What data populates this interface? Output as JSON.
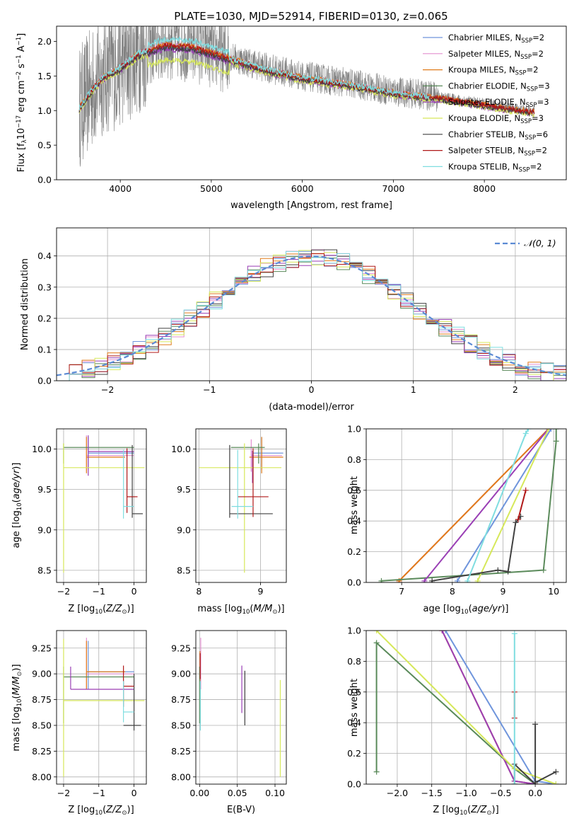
{
  "figure": {
    "title": "PLATE=1030, MJD=52914, FIBERID=0130, z=0.065"
  },
  "colors": {
    "data_gray": "#808080",
    "normal_fit": "#5a8ad4",
    "grid": "#b0b0b0"
  },
  "legend_entries": [
    {
      "label": "Chabrier MILES, N",
      "sub": "SSP",
      "suffix": "=2",
      "color": "#6f95dc"
    },
    {
      "label": "Salpeter MILES, N",
      "sub": "SSP",
      "suffix": "=2",
      "color": "#e38fcf"
    },
    {
      "label": "Kroupa MILES, N",
      "sub": "SSP",
      "suffix": "=2",
      "color": "#e07b1a"
    },
    {
      "label": "Chabrier ELODIE, N",
      "sub": "SSP",
      "suffix": "=3",
      "color": "#5a8a5a"
    },
    {
      "label": "Salpeter ELODIE, N",
      "sub": "SSP",
      "suffix": "=3",
      "color": "#9a3fb5"
    },
    {
      "label": "Kroupa ELODIE, N",
      "sub": "SSP",
      "suffix": "=3",
      "color": "#d6e85a"
    },
    {
      "label": "Chabrier STELIB, N",
      "sub": "SSP",
      "suffix": "=6",
      "color": "#404040"
    },
    {
      "label": "Salpeter STELIB, N",
      "sub": "SSP",
      "suffix": "=2",
      "color": "#b01818"
    },
    {
      "label": "Kroupa STELIB, N",
      "sub": "SSP",
      "suffix": "=2",
      "color": "#7fdde0"
    }
  ],
  "chart_data": [
    {
      "id": "spectrum",
      "type": "line",
      "xlabel": "wavelength [Angstrom, rest frame]",
      "ylabel": "Flux [f",
      "xlim": [
        3300,
        8900
      ],
      "ylim": [
        0,
        2.22
      ],
      "xticks": [
        4000,
        5000,
        6000,
        7000,
        8000
      ],
      "yticks": [
        0.0,
        0.5,
        1.0,
        1.5,
        2.0
      ],
      "xrange_data": [
        3550,
        8550
      ],
      "model_level_points": [
        [
          3550,
          1.05
        ],
        [
          3650,
          1.25
        ],
        [
          3800,
          1.5
        ],
        [
          4000,
          1.65
        ],
        [
          4200,
          1.85
        ],
        [
          4500,
          1.98
        ],
        [
          4800,
          1.95
        ],
        [
          5200,
          1.78
        ],
        [
          5600,
          1.62
        ],
        [
          6000,
          1.5
        ],
        [
          6500,
          1.4
        ],
        [
          7000,
          1.28
        ],
        [
          7500,
          1.2
        ],
        [
          8000,
          1.1
        ],
        [
          8500,
          1.0
        ]
      ],
      "grid": false
    },
    {
      "id": "residual_hist",
      "type": "line",
      "xlabel": "(data-model)/error",
      "ylabel": "Normed distribution",
      "xlim": [
        -2.5,
        2.5
      ],
      "ylim": [
        0,
        0.49
      ],
      "xticks": [
        -2,
        -1,
        0,
        1,
        2
      ],
      "yticks": [
        0.0,
        0.1,
        0.2,
        0.3,
        0.4
      ],
      "legend": {
        "label": "𝒩(0, 1)",
        "position": "top-right"
      },
      "grid": true
    },
    {
      "id": "age_vs_Z",
      "type": "scatter",
      "xlabel": "Z [log",
      "ylabel": "age  [log",
      "xlim": [
        -2.2,
        0.35
      ],
      "ylim": [
        8.35,
        10.25
      ],
      "xticks": [
        -2,
        -1,
        0
      ],
      "yticks": [
        8.5,
        9.0,
        9.5,
        10.0
      ],
      "errorbars": [
        {
          "series": 0,
          "x": -1.3,
          "xerr": [
            0.0,
            1.3
          ],
          "y": 9.95,
          "yerr": [
            0.2,
            0.2
          ]
        },
        {
          "series": 1,
          "x": -1.35,
          "xerr": [
            0.0,
            1.35
          ],
          "y": 9.92,
          "yerr": [
            0.2,
            0.25
          ]
        },
        {
          "series": 2,
          "x": -1.35,
          "xerr": [
            0.0,
            1.1
          ],
          "y": 9.9,
          "yerr": [
            0.2,
            0.25
          ]
        },
        {
          "series": 3,
          "x": -2.0,
          "xerr": [
            0.0,
            2.0
          ],
          "y": 10.02,
          "yerr": [
            0.2,
            0.05
          ]
        },
        {
          "series": 4,
          "x": -1.3,
          "xerr": [
            0.0,
            1.3
          ],
          "y": 9.97,
          "yerr": [
            0.3,
            0.2
          ]
        },
        {
          "series": 5,
          "x": -2.0,
          "xerr": [
            0.0,
            2.3
          ],
          "y": 9.77,
          "yerr": [
            1.3,
            0.3
          ]
        },
        {
          "series": 6,
          "x": -0.05,
          "xerr": [
            0.0,
            0.3
          ],
          "y": 9.2,
          "yerr": [
            0.05,
            0.85
          ]
        },
        {
          "series": 7,
          "x": -0.2,
          "xerr": [
            0.0,
            0.3
          ],
          "y": 9.41,
          "yerr": [
            0.2,
            0.6
          ]
        },
        {
          "series": 8,
          "x": -0.3,
          "xerr": [
            0.0,
            0.3
          ],
          "y": 9.29,
          "yerr": [
            0.15,
            0.7
          ]
        }
      ]
    },
    {
      "id": "age_vs_mass",
      "type": "scatter",
      "xlabel": "mass [log",
      "ylabel": "",
      "xlim": [
        7.95,
        9.42
      ],
      "ylim": [
        8.35,
        10.25
      ],
      "xticks": [
        8,
        9
      ],
      "yticks": [
        8.5,
        9.0,
        9.5,
        10.0
      ],
      "errorbars": [
        {
          "series": 0,
          "x": 9.02,
          "xerr": [
            0.15,
            0.35
          ],
          "y": 9.95,
          "yerr": [
            0.2,
            0.2
          ]
        },
        {
          "series": 1,
          "x": 8.85,
          "xerr": [
            0.0,
            0.5
          ],
          "y": 9.92,
          "yerr": [
            0.2,
            0.2
          ]
        },
        {
          "series": 2,
          "x": 9.02,
          "xerr": [
            0.2,
            0.35
          ],
          "y": 9.9,
          "yerr": [
            0.2,
            0.25
          ]
        },
        {
          "series": 3,
          "x": 8.97,
          "xerr": [
            0.45,
            0.1
          ],
          "y": 10.02,
          "yerr": [
            0.2,
            0.05
          ]
        },
        {
          "series": 4,
          "x": 8.87,
          "xerr": [
            0.0,
            0.0
          ],
          "y": 9.78,
          "yerr": [
            0.2,
            0.2
          ]
        },
        {
          "series": 5,
          "x": 8.74,
          "xerr": [
            0.74,
            0.6
          ],
          "y": 9.77,
          "yerr": [
            1.3,
            0.3
          ]
        },
        {
          "series": 6,
          "x": 8.5,
          "xerr": [
            0.0,
            0.7
          ],
          "y": 9.2,
          "yerr": [
            0.05,
            0.85
          ]
        },
        {
          "series": 7,
          "x": 8.88,
          "xerr": [
            0.25,
            0.25
          ],
          "y": 9.41,
          "yerr": [
            0.25,
            0.6
          ]
        },
        {
          "series": 8,
          "x": 8.63,
          "xerr": [
            0.1,
            0.25
          ],
          "y": 9.29,
          "yerr": [
            0.15,
            0.7
          ]
        }
      ]
    },
    {
      "id": "cumulative_mass_weight_age",
      "type": "line",
      "xlabel": "age  [log",
      "ylabel": "mass weight",
      "xlim": [
        6.3,
        10.25
      ],
      "ylim": [
        0,
        1
      ],
      "xticks": [
        7,
        8,
        9,
        10
      ],
      "yticks": [
        0.0,
        0.2,
        0.4,
        0.6,
        0.8,
        1.0
      ],
      "series": [
        {
          "series": 0,
          "points": [
            [
              8.1,
              0.0
            ],
            [
              8.1,
              0.01
            ],
            [
              9.95,
              1.0
            ]
          ]
        },
        {
          "series": 1,
          "points": [
            [
              6.95,
              0.0
            ],
            [
              6.95,
              0.01
            ],
            [
              9.9,
              1.0
            ]
          ]
        },
        {
          "series": 2,
          "points": [
            [
              6.95,
              0.0
            ],
            [
              6.95,
              0.01
            ],
            [
              9.9,
              1.0
            ]
          ]
        },
        {
          "series": 3,
          "points": [
            [
              6.6,
              0.0
            ],
            [
              6.6,
              0.01
            ],
            [
              9.8,
              0.08
            ],
            [
              10.05,
              0.92
            ],
            [
              10.05,
              1.0
            ]
          ]
        },
        {
          "series": 4,
          "points": [
            [
              7.45,
              0.0
            ],
            [
              7.45,
              0.01
            ],
            [
              9.9,
              1.0
            ]
          ]
        },
        {
          "series": 5,
          "points": [
            [
              8.5,
              0.0
            ],
            [
              8.5,
              0.01
            ],
            [
              9.9,
              1.0
            ]
          ]
        },
        {
          "series": 6,
          "points": [
            [
              7.6,
              0.0
            ],
            [
              7.6,
              0.01
            ],
            [
              8.9,
              0.08
            ],
            [
              9.1,
              0.07
            ],
            [
              9.25,
              0.39
            ],
            [
              9.35,
              0.43
            ]
          ]
        },
        {
          "series": 7,
          "points": [
            [
              9.3,
              0.41
            ],
            [
              9.45,
              0.6
            ]
          ]
        },
        {
          "series": 8,
          "points": [
            [
              8.3,
              0.0
            ],
            [
              8.3,
              0.01
            ],
            [
              9.45,
              0.97
            ],
            [
              9.5,
              1.0
            ]
          ]
        }
      ]
    },
    {
      "id": "mass_vs_Z",
      "type": "scatter",
      "xlabel": "Z [log",
      "ylabel": "mass [log",
      "xlim": [
        -2.2,
        0.35
      ],
      "ylim": [
        7.93,
        9.42
      ],
      "xticks": [
        -2,
        -1,
        0
      ],
      "yticks": [
        8.0,
        8.25,
        8.5,
        8.75,
        9.0,
        9.25
      ],
      "errorbars": [
        {
          "series": 0,
          "x": -1.3,
          "xerr": [
            0.0,
            1.3
          ],
          "y": 9.02,
          "yerr": [
            0.17,
            0.3
          ]
        },
        {
          "series": 1,
          "x": -1.35,
          "xerr": [
            0.0,
            1.35
          ],
          "y": 9.0,
          "yerr": [
            0.15,
            0.35
          ]
        },
        {
          "series": 2,
          "x": -1.35,
          "xerr": [
            0.0,
            1.1
          ],
          "y": 9.02,
          "yerr": [
            0.17,
            0.3
          ]
        },
        {
          "series": 3,
          "x": -2.0,
          "xerr": [
            0.0,
            2.0
          ],
          "y": 8.97,
          "yerr": [
            0.45,
            0.1
          ]
        },
        {
          "series": 4,
          "x": -1.8,
          "xerr": [
            0.0,
            1.8
          ],
          "y": 8.85,
          "yerr": [
            0.0,
            0.22
          ]
        },
        {
          "series": 5,
          "x": -2.0,
          "xerr": [
            0.0,
            2.3
          ],
          "y": 8.74,
          "yerr": [
            0.74,
            0.6
          ]
        },
        {
          "series": 6,
          "x": 0.0,
          "xerr": [
            0.3,
            0.2
          ],
          "y": 8.5,
          "yerr": [
            0.05,
            0.5
          ]
        },
        {
          "series": 7,
          "x": -0.3,
          "xerr": [
            0.0,
            0.3
          ],
          "y": 8.88,
          "yerr": [
            0.2,
            0.2
          ]
        },
        {
          "series": 8,
          "x": -0.3,
          "xerr": [
            0.0,
            0.3
          ],
          "y": 8.63,
          "yerr": [
            0.1,
            0.3
          ]
        }
      ]
    },
    {
      "id": "mass_vs_EBV",
      "type": "scatter",
      "xlabel": "E(B-V)",
      "ylabel": "",
      "xlim": [
        -0.005,
        0.115
      ],
      "ylim": [
        7.93,
        9.42
      ],
      "xticks": [
        0.0,
        0.05,
        0.1
      ],
      "xtick_labels": [
        "0.00",
        "0.05",
        "0.10"
      ],
      "yticks": [
        8.0,
        8.25,
        8.5,
        8.75,
        9.0,
        9.25
      ],
      "errorbars": [
        {
          "series": 0,
          "x": 0.001,
          "xerr": [
            0,
            0
          ],
          "y": 9.02,
          "yerr": [
            0.1,
            0.2
          ]
        },
        {
          "series": 1,
          "x": 0.0015,
          "xerr": [
            0,
            0
          ],
          "y": 9.0,
          "yerr": [
            0.15,
            0.35
          ]
        },
        {
          "series": 2,
          "x": 0.0005,
          "xerr": [
            0,
            0
          ],
          "y": 9.02,
          "yerr": [
            0.1,
            0.2
          ]
        },
        {
          "series": 3,
          "x": 0.0,
          "xerr": [
            0,
            0
          ],
          "y": 8.97,
          "yerr": [
            0.45,
            0.1
          ]
        },
        {
          "series": 4,
          "x": 0.056,
          "xerr": [
            0,
            0
          ],
          "y": 8.85,
          "yerr": [
            0.23,
            0.23
          ]
        },
        {
          "series": 5,
          "x": 0.107,
          "xerr": [
            0,
            0
          ],
          "y": 8.74,
          "yerr": [
            0.74,
            0.2
          ]
        },
        {
          "series": 6,
          "x": 0.06,
          "xerr": [
            0,
            0
          ],
          "y": 8.8,
          "yerr": [
            0.3,
            0.23
          ]
        },
        {
          "series": 7,
          "x": 0.0008,
          "xerr": [
            0,
            0
          ],
          "y": 9.1,
          "yerr": [
            0.15,
            0.1
          ]
        },
        {
          "series": 8,
          "x": 0.001,
          "xerr": [
            0,
            0
          ],
          "y": 8.63,
          "yerr": [
            0.18,
            0.3
          ]
        }
      ]
    },
    {
      "id": "cumulative_mass_weight_Z",
      "type": "line",
      "xlabel": "Z [log",
      "ylabel": "mass weight",
      "xlim": [
        -2.45,
        0.45
      ],
      "ylim": [
        0,
        1
      ],
      "xticks": [
        -2.0,
        -1.5,
        -1.0,
        -0.5,
        0.0
      ],
      "xtick_labels": [
        "−2.0",
        "−1.5",
        "−1.0",
        "−0.5",
        "0.0"
      ],
      "yticks": [
        0.0,
        0.2,
        0.4,
        0.6,
        0.8,
        1.0
      ],
      "series": [
        {
          "series": 0,
          "points": [
            [
              -1.3,
              1.0
            ],
            [
              0.0,
              0.02
            ],
            [
              0.3,
              0.0
            ]
          ]
        },
        {
          "series": 1,
          "points": [
            [
              -1.35,
              1.0
            ],
            [
              -0.3,
              0.02
            ],
            [
              0.0,
              0.0
            ]
          ]
        },
        {
          "series": 2,
          "points": [
            [
              -1.35,
              1.0
            ],
            [
              -0.3,
              0.02
            ],
            [
              0.0,
              0.0
            ]
          ]
        },
        {
          "series": 3,
          "points": [
            [
              -2.3,
              0.08
            ],
            [
              -2.3,
              0.92
            ],
            [
              -0.3,
              0.1
            ],
            [
              0.0,
              0.0
            ]
          ]
        },
        {
          "series": 4,
          "points": [
            [
              -1.35,
              1.0
            ],
            [
              -0.3,
              0.02
            ],
            [
              0.0,
              0.0
            ]
          ]
        },
        {
          "series": 5,
          "points": [
            [
              -2.3,
              1.0
            ],
            [
              -0.3,
              0.1
            ],
            [
              0.3,
              0.0
            ]
          ]
        },
        {
          "series": 6,
          "points": [
            [
              -0.3,
              0.0
            ],
            [
              -0.3,
              0.13
            ],
            [
              0.0,
              0.0
            ],
            [
              0.0,
              0.39
            ],
            [
              0.0,
              0.01
            ],
            [
              0.3,
              0.08
            ]
          ]
        },
        {
          "series": 7,
          "points": [
            [
              -0.3,
              0.6
            ],
            [
              -0.3,
              0.43
            ]
          ]
        },
        {
          "series": 8,
          "points": [
            [
              -0.3,
              0.0
            ],
            [
              -0.3,
              0.98
            ]
          ]
        }
      ]
    }
  ]
}
